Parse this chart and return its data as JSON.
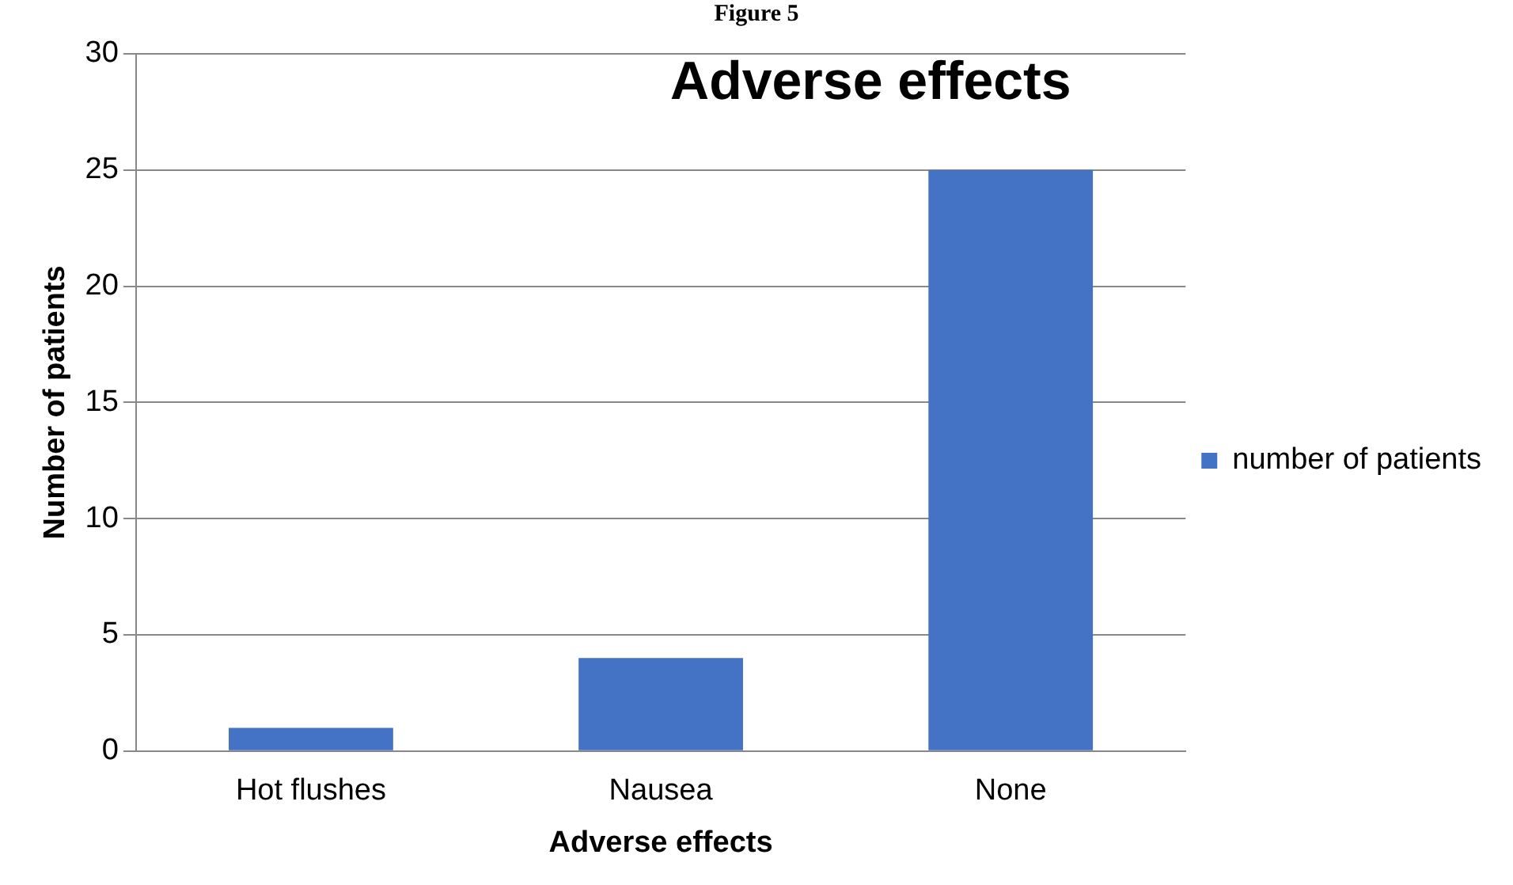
{
  "chart_data": {
    "type": "bar",
    "title": "Adverse effects",
    "xlabel": "Adverse effects",
    "ylabel": "Number of patients",
    "annotations": [
      "Figure 5"
    ],
    "categories": [
      "Hot flushes",
      "Nausea",
      "None"
    ],
    "series": [
      {
        "name": "number of patients",
        "color": "#4472c4",
        "values": [
          1,
          4,
          25
        ]
      }
    ],
    "ylim": [
      0,
      30
    ],
    "yticks": [
      0,
      5,
      10,
      15,
      20,
      25,
      30
    ],
    "grid": "y",
    "legend": "right"
  }
}
